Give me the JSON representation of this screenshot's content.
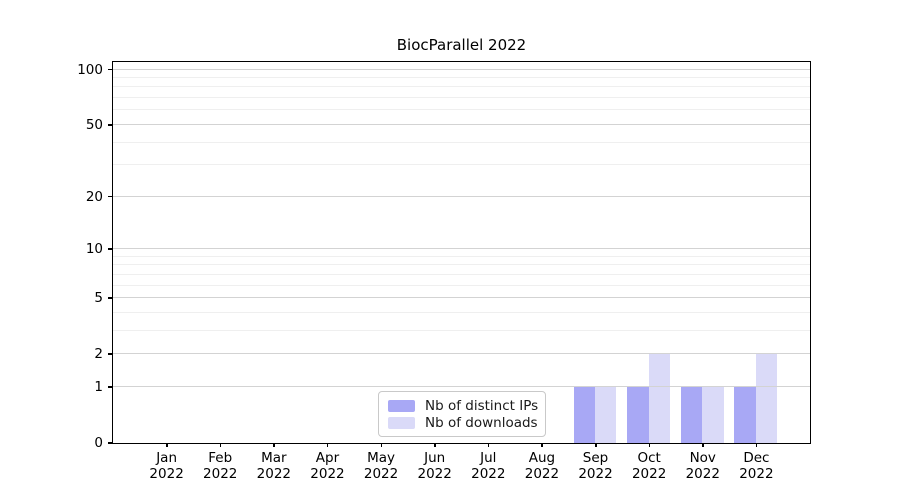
{
  "chart_data": {
    "type": "bar",
    "title": "BiocParallel 2022",
    "categories": [
      "Jan",
      "Feb",
      "Mar",
      "Apr",
      "May",
      "Jun",
      "Jul",
      "Aug",
      "Sep",
      "Oct",
      "Nov",
      "Dec"
    ],
    "year": "2022",
    "series": [
      {
        "name": "Nb of distinct IPs",
        "color": "#a8a8f5",
        "values": [
          0,
          0,
          0,
          0,
          0,
          0,
          0,
          0,
          1,
          1,
          1,
          1
        ]
      },
      {
        "name": "Nb of downloads",
        "color": "#dadaf8",
        "values": [
          0,
          0,
          0,
          0,
          0,
          0,
          0,
          0,
          1,
          2,
          1,
          2
        ]
      }
    ],
    "xlabel": "",
    "ylabel": "",
    "y_scale": "log1p",
    "ylim": [
      0,
      110
    ],
    "y_major_ticks": [
      0,
      1,
      2,
      5,
      10,
      20,
      50,
      100
    ],
    "y_minor_gridlines": [
      3,
      4,
      6,
      7,
      8,
      9,
      30,
      40,
      60,
      70,
      80,
      90
    ],
    "grid": true,
    "legend_position": "lower center",
    "bar_width_fraction": 0.4
  },
  "style": {
    "grid_major_color": "#d3d3d3",
    "grid_minor_color": "#efefef",
    "axis_color": "#000000",
    "text_color": "#000000"
  }
}
